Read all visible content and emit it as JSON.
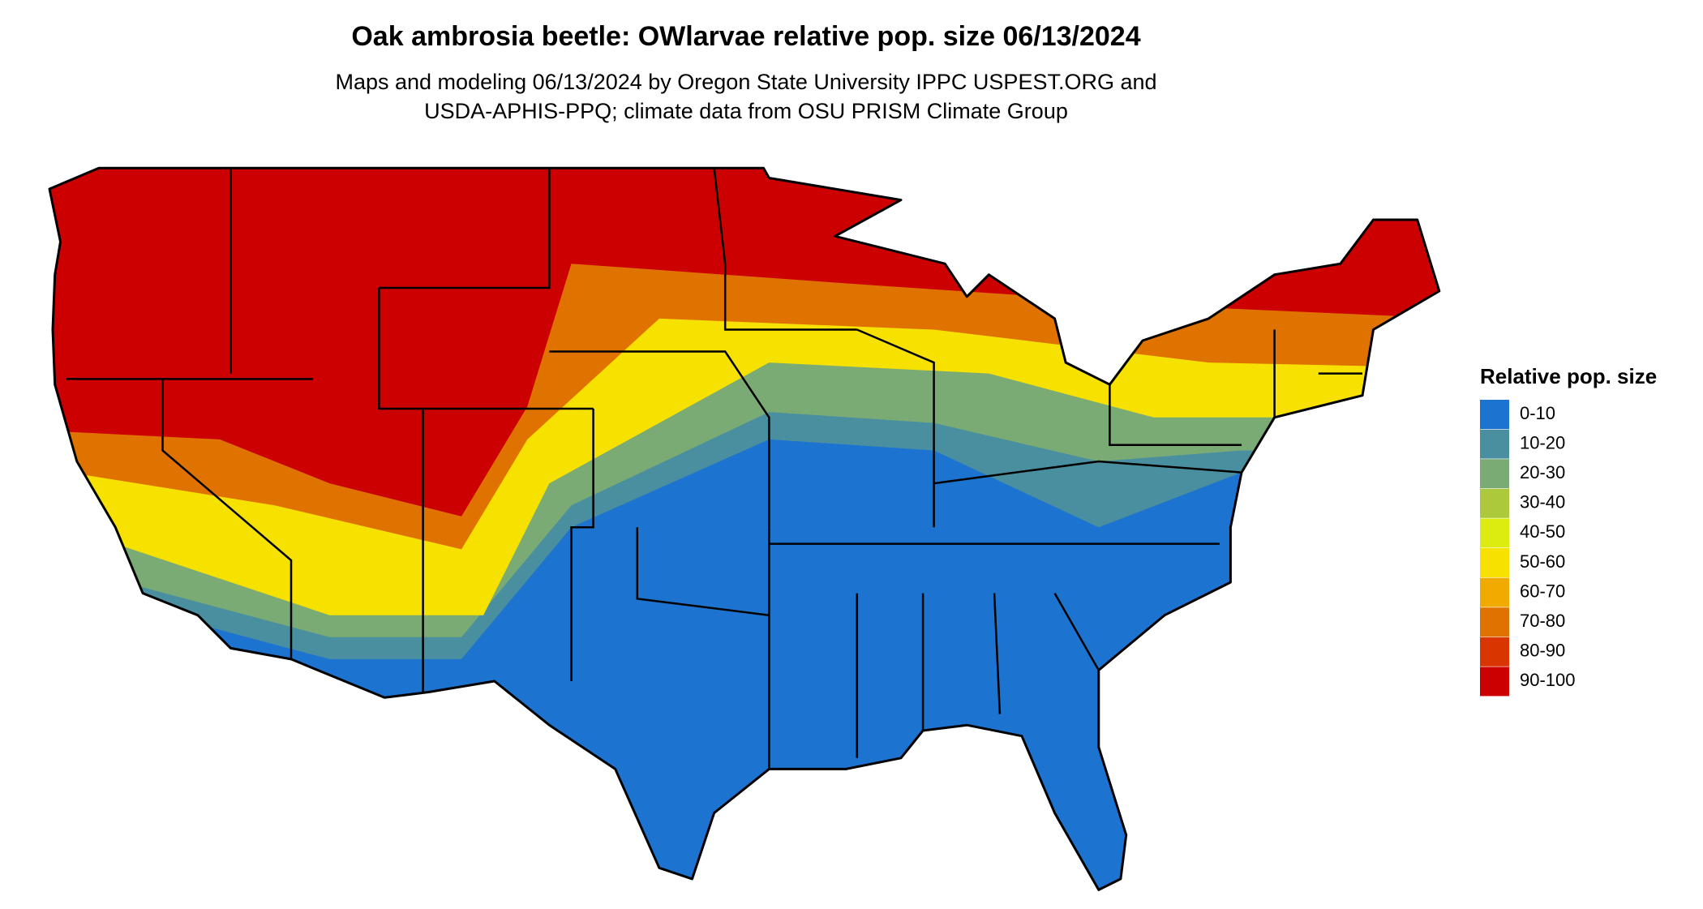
{
  "title": "Oak ambrosia beetle: OWlarvae relative pop. size 06/13/2024",
  "subtitle": [
    "Maps and modeling 06/13/2024 by Oregon State University IPPC USPEST.ORG and",
    "USDA-APHIS-PPQ; climate data from OSU PRISM Climate Group"
  ],
  "legend": {
    "title": "Relative pop. size",
    "items": [
      {
        "label": "0-10",
        "color": "#1c74d0"
      },
      {
        "label": "10-20",
        "color": "#4a8fa0"
      },
      {
        "label": "20-30",
        "color": "#7aab74"
      },
      {
        "label": "30-40",
        "color": "#acc93c"
      },
      {
        "label": "40-50",
        "color": "#dcec10"
      },
      {
        "label": "50-60",
        "color": "#f7e100"
      },
      {
        "label": "60-70",
        "color": "#f0aa00"
      },
      {
        "label": "70-80",
        "color": "#e07200"
      },
      {
        "label": "80-90",
        "color": "#d83500"
      },
      {
        "label": "90-100",
        "color": "#cc0000"
      }
    ]
  }
}
